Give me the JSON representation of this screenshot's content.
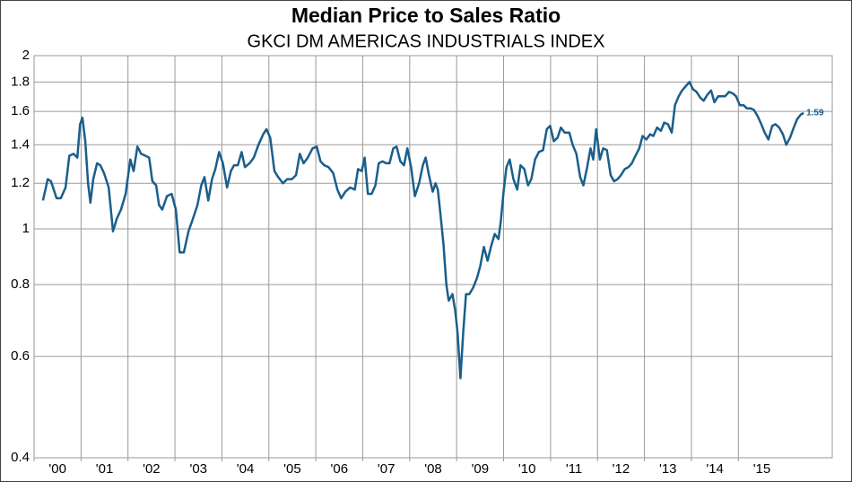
{
  "chart_data": {
    "type": "line",
    "title": "Median Price to Sales Ratio",
    "subtitle": "GKCI DM AMERICAS INDUSTRIALS INDEX",
    "log_y": true,
    "grid": true,
    "ylim": [
      0.4,
      2
    ],
    "yticks": [
      0.4,
      0.6,
      0.8,
      1,
      1.2,
      1.4,
      1.6,
      1.8,
      2
    ],
    "xlim": [
      2000,
      2017
    ],
    "xticks": [
      {
        "value": 2000,
        "label": "'00"
      },
      {
        "value": 2001,
        "label": "'01"
      },
      {
        "value": 2002,
        "label": "'02"
      },
      {
        "value": 2003,
        "label": "'03"
      },
      {
        "value": 2004,
        "label": "'04"
      },
      {
        "value": 2005,
        "label": "'05"
      },
      {
        "value": 2006,
        "label": "'06"
      },
      {
        "value": 2007,
        "label": "'07"
      },
      {
        "value": 2008,
        "label": "'08"
      },
      {
        "value": 2009,
        "label": "'09"
      },
      {
        "value": 2010,
        "label": "'10"
      },
      {
        "value": 2011,
        "label": "'11"
      },
      {
        "value": 2012,
        "label": "'12"
      },
      {
        "value": 2013,
        "label": "'13"
      },
      {
        "value": 2014,
        "label": "'14"
      },
      {
        "value": 2015,
        "label": "'15"
      }
    ],
    "x": [
      2000.19,
      2000.29,
      2000.36,
      2000.48,
      2000.57,
      2000.67,
      2000.75,
      2000.84,
      2000.92,
      2000.98,
      2001.03,
      2001.09,
      2001.15,
      2001.2,
      2001.26,
      2001.34,
      2001.41,
      2001.49,
      2001.59,
      2001.68,
      2001.76,
      2001.85,
      2001.95,
      2002.05,
      2002.12,
      2002.2,
      2002.28,
      2002.37,
      2002.45,
      2002.52,
      2002.6,
      2002.66,
      2002.73,
      2002.83,
      2002.93,
      2003.02,
      2003.1,
      2003.19,
      2003.29,
      2003.38,
      2003.48,
      2003.56,
      2003.63,
      2003.71,
      2003.79,
      2003.86,
      2003.94,
      2004.02,
      2004.11,
      2004.19,
      2004.26,
      2004.34,
      2004.42,
      2004.49,
      2004.59,
      2004.68,
      2004.78,
      2004.88,
      2004.95,
      2005.03,
      2005.12,
      2005.2,
      2005.3,
      2005.39,
      2005.49,
      2005.58,
      2005.66,
      2005.74,
      2005.83,
      2005.93,
      2006.02,
      2006.1,
      2006.18,
      2006.27,
      2006.37,
      2006.46,
      2006.54,
      2006.63,
      2006.73,
      2006.83,
      2006.9,
      2006.98,
      2007.04,
      2007.11,
      2007.19,
      2007.27,
      2007.34,
      2007.42,
      2007.5,
      2007.57,
      2007.65,
      2007.72,
      2007.8,
      2007.88,
      2007.95,
      2008.03,
      2008.11,
      2008.2,
      2008.28,
      2008.34,
      2008.41,
      2008.49,
      2008.55,
      2008.6,
      2008.66,
      2008.72,
      2008.78,
      2008.83,
      2008.91,
      2008.97,
      2009.02,
      2009.08,
      2009.14,
      2009.2,
      2009.27,
      2009.35,
      2009.43,
      2009.5,
      2009.58,
      2009.66,
      2009.73,
      2009.81,
      2009.89,
      2009.94,
      2010.0,
      2010.06,
      2010.13,
      2010.21,
      2010.29,
      2010.36,
      2010.44,
      2010.52,
      2010.59,
      2010.67,
      2010.75,
      2010.84,
      2010.92,
      2010.99,
      2011.07,
      2011.15,
      2011.22,
      2011.3,
      2011.4,
      2011.47,
      2011.55,
      2011.63,
      2011.7,
      2011.78,
      2011.85,
      2011.91,
      2011.97,
      2012.05,
      2012.12,
      2012.2,
      2012.28,
      2012.35,
      2012.43,
      2012.5,
      2012.58,
      2012.66,
      2012.73,
      2012.81,
      2012.89,
      2012.96,
      2013.04,
      2013.12,
      2013.19,
      2013.27,
      2013.35,
      2013.42,
      2013.5,
      2013.58,
      2013.65,
      2013.73,
      2013.8,
      2013.88,
      2013.96,
      2014.03,
      2014.11,
      2014.19,
      2014.26,
      2014.34,
      2014.42,
      2014.49,
      2014.57,
      2014.65,
      2014.72,
      2014.8,
      2014.88,
      2014.95,
      2015.03,
      2015.11,
      2015.18,
      2015.26,
      2015.33,
      2015.41,
      2015.49,
      2015.56,
      2015.64,
      2015.72,
      2015.79,
      2015.87,
      2015.95,
      2016.02,
      2016.1,
      2016.18,
      2016.25,
      2016.33,
      2016.39
    ],
    "series": [
      {
        "color": "#1a5e8c",
        "values": [
          1.12,
          1.22,
          1.21,
          1.13,
          1.13,
          1.18,
          1.34,
          1.35,
          1.33,
          1.52,
          1.56,
          1.42,
          1.2,
          1.11,
          1.22,
          1.3,
          1.29,
          1.25,
          1.18,
          0.99,
          1.04,
          1.08,
          1.15,
          1.32,
          1.26,
          1.39,
          1.35,
          1.34,
          1.33,
          1.21,
          1.19,
          1.1,
          1.08,
          1.14,
          1.15,
          1.08,
          0.91,
          0.91,
          0.99,
          1.04,
          1.1,
          1.19,
          1.23,
          1.12,
          1.22,
          1.27,
          1.36,
          1.3,
          1.18,
          1.26,
          1.29,
          1.29,
          1.36,
          1.28,
          1.3,
          1.33,
          1.4,
          1.46,
          1.49,
          1.44,
          1.26,
          1.23,
          1.2,
          1.22,
          1.22,
          1.24,
          1.35,
          1.3,
          1.33,
          1.38,
          1.39,
          1.31,
          1.29,
          1.28,
          1.25,
          1.17,
          1.13,
          1.16,
          1.18,
          1.17,
          1.27,
          1.26,
          1.33,
          1.15,
          1.15,
          1.19,
          1.3,
          1.31,
          1.3,
          1.3,
          1.38,
          1.39,
          1.31,
          1.29,
          1.38,
          1.28,
          1.14,
          1.2,
          1.29,
          1.33,
          1.24,
          1.16,
          1.2,
          1.17,
          1.05,
          0.94,
          0.8,
          0.75,
          0.77,
          0.72,
          0.66,
          0.55,
          0.66,
          0.77,
          0.77,
          0.79,
          0.82,
          0.86,
          0.93,
          0.88,
          0.93,
          0.98,
          0.96,
          1.03,
          1.16,
          1.28,
          1.32,
          1.22,
          1.17,
          1.29,
          1.27,
          1.19,
          1.22,
          1.32,
          1.36,
          1.37,
          1.49,
          1.51,
          1.42,
          1.44,
          1.5,
          1.47,
          1.47,
          1.4,
          1.35,
          1.23,
          1.19,
          1.28,
          1.38,
          1.32,
          1.49,
          1.32,
          1.38,
          1.37,
          1.24,
          1.21,
          1.22,
          1.24,
          1.27,
          1.28,
          1.3,
          1.34,
          1.38,
          1.45,
          1.43,
          1.46,
          1.45,
          1.5,
          1.48,
          1.53,
          1.52,
          1.47,
          1.64,
          1.7,
          1.74,
          1.77,
          1.8,
          1.75,
          1.73,
          1.69,
          1.67,
          1.71,
          1.74,
          1.66,
          1.7,
          1.7,
          1.7,
          1.73,
          1.72,
          1.7,
          1.64,
          1.64,
          1.62,
          1.62,
          1.61,
          1.57,
          1.52,
          1.47,
          1.43,
          1.51,
          1.52,
          1.5,
          1.46,
          1.4,
          1.44,
          1.5,
          1.55,
          1.58,
          1.59
        ]
      }
    ]
  }
}
